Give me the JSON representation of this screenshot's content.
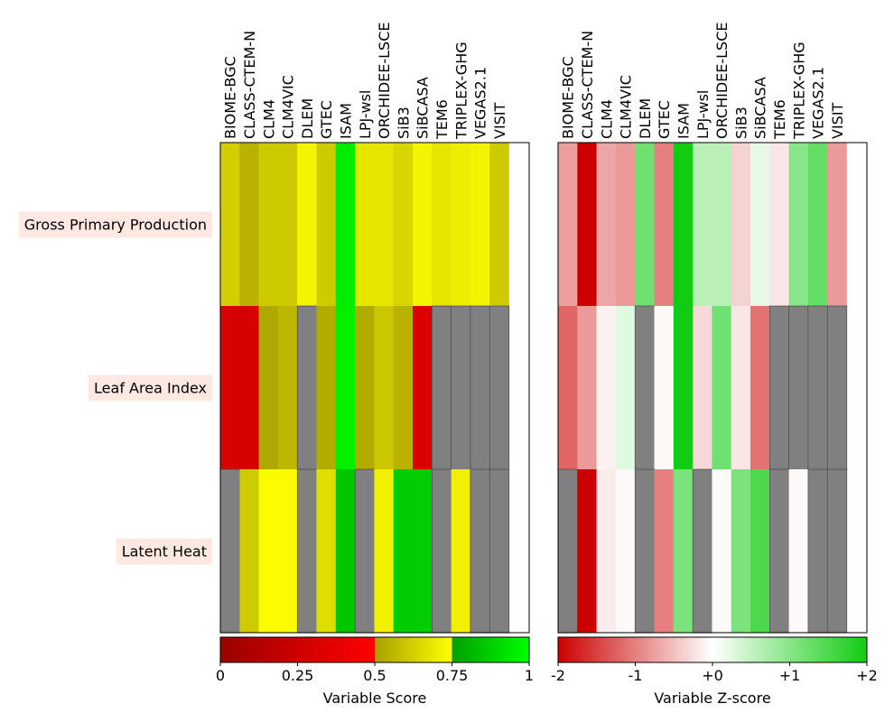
{
  "chart_data": [
    {
      "type": "heatmap",
      "models": [
        "BIOME-BGC",
        "CLASS-CTEM-N",
        "CLM4",
        "CLM4VIC",
        "DLEM",
        "GTEC",
        "ISAM",
        "LPJ-wsl",
        "ORCHIDEE-LSCE",
        "SiB3",
        "SiBCASA",
        "TEM6",
        "TRIPLEX-GHG",
        "VEGAS2.1",
        "VISIT"
      ],
      "variables": [
        "Gross Primary Production",
        "Leaf Area Index",
        "Latent Heat"
      ],
      "values": [
        [
          0.62,
          0.55,
          0.61,
          0.61,
          0.72,
          0.61,
          0.95,
          0.68,
          0.68,
          0.64,
          0.72,
          0.68,
          0.7,
          0.72,
          0.61
        ],
        [
          0.3,
          0.3,
          0.52,
          0.56,
          null,
          0.53,
          0.96,
          0.53,
          0.6,
          0.55,
          0.33,
          null,
          null,
          null,
          null
        ],
        [
          null,
          0.61,
          0.74,
          0.74,
          null,
          0.66,
          0.85,
          null,
          0.71,
          0.87,
          0.87,
          null,
          0.71,
          null,
          null
        ]
      ],
      "colorbar": {
        "label": "Variable Score",
        "range": [
          0,
          1
        ],
        "ticks": [
          0,
          0.25,
          0.5,
          0.75,
          1
        ],
        "tick_labels": [
          "0",
          "0.25",
          "0.5",
          "0.75",
          "1"
        ]
      },
      "missing_color": "#808080"
    },
    {
      "type": "heatmap",
      "models": [
        "BIOME-BGC",
        "CLASS-CTEM-N",
        "CLM4",
        "CLM4VIC",
        "DLEM",
        "GTEC",
        "ISAM",
        "LPJ-wsl",
        "ORCHIDEE-LSCE",
        "SiB3",
        "SiBCASA",
        "TEM6",
        "TRIPLEX-GHG",
        "VEGAS2.1",
        "VISIT"
      ],
      "variables": [
        "Gross Primary Production",
        "Leaf Area Index",
        "Latent Heat"
      ],
      "values": [
        [
          -0.75,
          -2.0,
          -0.7,
          -0.8,
          1.2,
          -1.0,
          2.0,
          0.6,
          0.6,
          -0.35,
          0.2,
          -0.2,
          1.0,
          1.3,
          -0.8
        ],
        [
          -1.2,
          -0.8,
          -0.1,
          0.25,
          null,
          -0.05,
          2.0,
          -0.3,
          1.2,
          -0.2,
          -1.1,
          null,
          null,
          null,
          null
        ],
        [
          null,
          -2.0,
          -0.15,
          -0.05,
          null,
          -1.0,
          1.1,
          null,
          -0.05,
          1.1,
          1.5,
          null,
          -0.05,
          null,
          null
        ]
      ],
      "colorbar": {
        "label": "Variable Z-score",
        "range": [
          -2,
          2
        ],
        "ticks": [
          -2,
          -1,
          0,
          1,
          2
        ],
        "tick_labels": [
          "-2",
          "-1",
          "+0",
          "+1",
          "+2"
        ]
      },
      "missing_color": "#808080"
    }
  ],
  "colors": {
    "score_red": [
      "#9a0000",
      "#ff0000"
    ],
    "score_yellow": [
      "#a8a000",
      "#ffff00"
    ],
    "score_green": [
      "#00a000",
      "#00ff00"
    ],
    "z_low": "#cc0000",
    "z_mid": "#ffffff",
    "z_high": "#11cc11",
    "label_box": "#fde8e2",
    "missing": "#808080"
  }
}
